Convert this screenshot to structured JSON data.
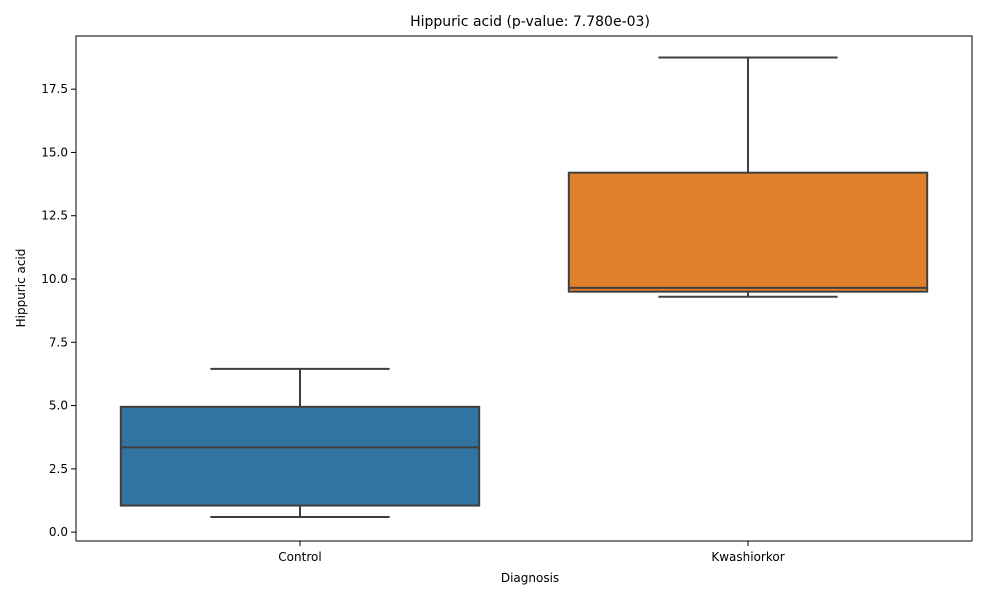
{
  "chart_data": {
    "type": "box",
    "title": "Hippuric acid (p-value: 7.780e-03)",
    "xlabel": "Diagnosis",
    "ylabel": "Hippuric acid",
    "categories": [
      "Control",
      "Kwashiorkor"
    ],
    "ylim": [
      -0.35,
      19.6
    ],
    "yticks": [
      0.0,
      2.5,
      5.0,
      7.5,
      10.0,
      12.5,
      15.0,
      17.5
    ],
    "ytick_labels": [
      "0.0",
      "2.5",
      "5.0",
      "7.5",
      "10.0",
      "12.5",
      "15.0",
      "17.5"
    ],
    "boxes": [
      {
        "category": "Control",
        "whisker_low": 0.6,
        "q1": 1.05,
        "median": 3.35,
        "q3": 4.95,
        "whisker_high": 6.45,
        "color": "#3274a1"
      },
      {
        "category": "Kwashiorkor",
        "whisker_low": 9.3,
        "q1": 9.5,
        "median": 9.65,
        "q3": 14.2,
        "whisker_high": 18.75,
        "color": "#e1812c"
      }
    ],
    "grid": false,
    "legend": "none"
  }
}
